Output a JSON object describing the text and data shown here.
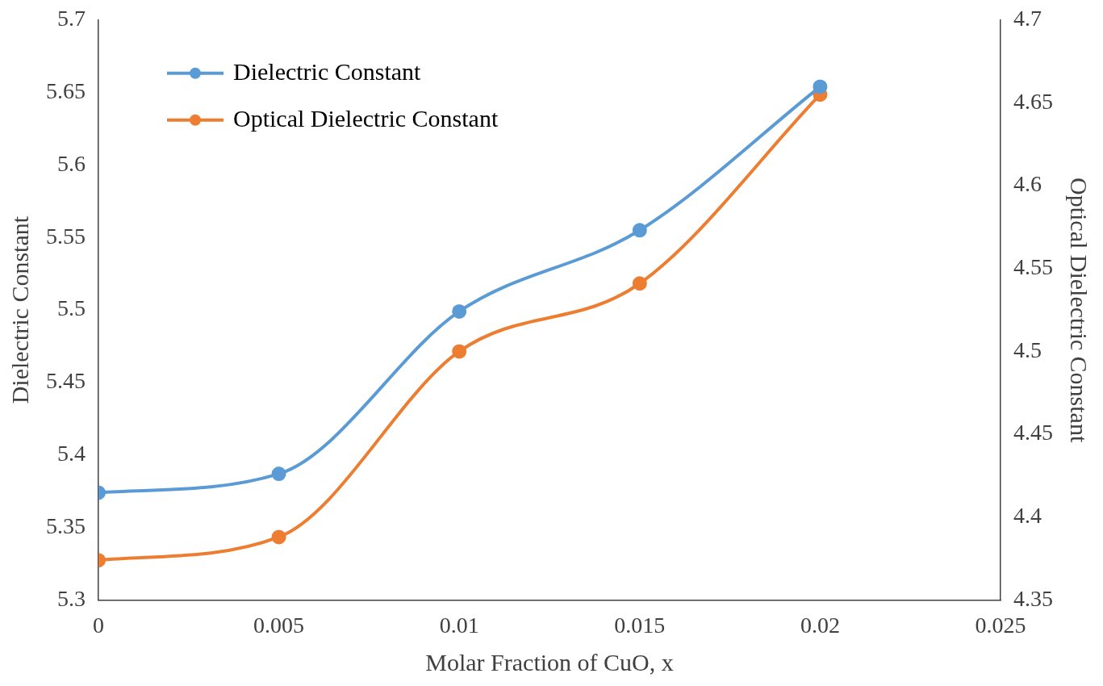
{
  "chart_data": {
    "type": "line",
    "xlabel": "Molar Fraction of CuO, x",
    "ylabel": "Dielectric Constant",
    "y2label": "Optical Dielectric Constant",
    "x": [
      0,
      0.005,
      0.01,
      0.015,
      0.02
    ],
    "series": [
      {
        "name": "Dielectric Constant",
        "color": "#5b9bd5",
        "values": [
          5.374,
          5.387,
          5.499,
          5.555,
          5.654
        ]
      },
      {
        "name": "Optical Dielectric Constant",
        "color": "#ed7d31",
        "axis": "y2",
        "values": [
          4.374,
          4.388,
          4.5,
          4.541,
          4.655
        ]
      }
    ],
    "xlim": [
      0,
      0.025
    ],
    "xticks": [
      0,
      0.005,
      0.01,
      0.015,
      0.02,
      0.025
    ],
    "ylim": [
      5.3,
      5.7
    ],
    "yticks": [
      5.3,
      5.35,
      5.4,
      5.45,
      5.5,
      5.55,
      5.6,
      5.65,
      5.7
    ],
    "y2lim": [
      4.35,
      4.7
    ],
    "y2ticks": [
      4.35,
      4.4,
      4.45,
      4.5,
      4.55,
      4.6,
      4.65,
      4.7
    ],
    "legend": "top left",
    "marker": "circle",
    "line_style": "solid",
    "grid": false
  }
}
